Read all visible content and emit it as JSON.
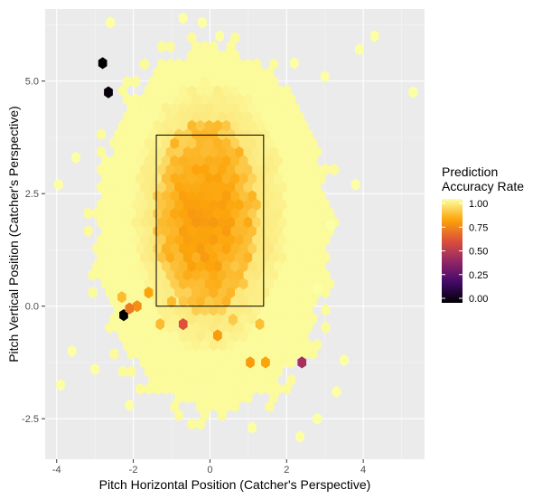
{
  "chart_data": {
    "type": "heatmap",
    "subtype": "hexbin",
    "title": "",
    "xlabel": "Pitch Horizontal Position (Catcher's Perspective)",
    "ylabel": "Pitch Vertical Position (Catcher's Perspective)",
    "xlim": [
      -4.3,
      5.6
    ],
    "ylim": [
      -3.4,
      6.6
    ],
    "x_ticks": [
      -4,
      -2,
      0,
      2,
      4
    ],
    "x_tick_labels": [
      "-4",
      "-2",
      "0",
      "2",
      "4"
    ],
    "y_ticks": [
      -2.5,
      0,
      2.5,
      5
    ],
    "y_tick_labels": [
      "-2.5",
      "0.0",
      "2.5",
      "5.0"
    ],
    "grid": true,
    "panel_background": "#ebebeb",
    "strike_zone": {
      "x": [
        -1.4,
        1.4
      ],
      "y": [
        0,
        3.8
      ]
    },
    "legend": {
      "title_lines": [
        "Prediction",
        "Accuracy Rate"
      ],
      "placement": "right",
      "range": [
        0,
        1
      ],
      "ticks": [
        0,
        0.25,
        0.5,
        0.75,
        1
      ],
      "tick_labels": [
        "0.00",
        "0.25",
        "0.50",
        "0.75",
        "1.00"
      ],
      "colormap": "inferno",
      "color_stops": [
        "#000004",
        "#420a68",
        "#932667",
        "#dd513a",
        "#fca50a",
        "#fcffa4"
      ]
    },
    "hex_size": 0.13,
    "regions": {
      "outer": {
        "cx": 0.1,
        "cy": 1.7,
        "rx": 3.0,
        "ry": 4.0,
        "value": 0.99
      },
      "middle": {
        "cx": 0.0,
        "cy": 2.0,
        "rx": 2.0,
        "ry": 3.0,
        "value": 0.92
      },
      "core": {
        "cx": -0.1,
        "cy": 2.0,
        "rx": 1.35,
        "ry": 2.2,
        "value": 0.8
      }
    },
    "outlier_points": [
      {
        "x": -2.8,
        "y": 5.4,
        "value": 0.0
      },
      {
        "x": -2.65,
        "y": 4.75,
        "value": 0.02
      },
      {
        "x": -2.25,
        "y": -0.2,
        "value": 0.0
      },
      {
        "x": -1.9,
        "y": 0.0,
        "value": 0.75
      },
      {
        "x": -2.1,
        "y": -0.05,
        "value": 0.7
      },
      {
        "x": -2.3,
        "y": 0.2,
        "value": 0.85
      },
      {
        "x": -0.7,
        "y": -0.4,
        "value": 0.6
      },
      {
        "x": 0.2,
        "y": -0.65,
        "value": 0.78
      },
      {
        "x": 1.05,
        "y": -1.25,
        "value": 0.78
      },
      {
        "x": 1.45,
        "y": -1.25,
        "value": 0.8
      },
      {
        "x": 2.4,
        "y": -1.25,
        "value": 0.45
      },
      {
        "x": -1.3,
        "y": -0.4,
        "value": 0.85
      },
      {
        "x": -1.6,
        "y": 0.3,
        "value": 0.8
      },
      {
        "x": 5.3,
        "y": 4.75,
        "value": 1.0
      },
      {
        "x": 4.3,
        "y": 6.0,
        "value": 1.0
      },
      {
        "x": 3.9,
        "y": 5.7,
        "value": 1.0
      },
      {
        "x": 3.8,
        "y": 2.7,
        "value": 1.0
      },
      {
        "x": -3.9,
        "y": -1.75,
        "value": 1.0
      },
      {
        "x": -3.6,
        "y": -1.0,
        "value": 1.0
      },
      {
        "x": -3.0,
        "y": -1.4,
        "value": 1.0
      },
      {
        "x": -2.1,
        "y": -2.2,
        "value": 1.0
      },
      {
        "x": 1.1,
        "y": -2.7,
        "value": 1.0
      },
      {
        "x": 2.35,
        "y": -2.9,
        "value": 1.0
      },
      {
        "x": 2.8,
        "y": -2.5,
        "value": 1.0
      },
      {
        "x": 3.3,
        "y": -1.9,
        "value": 1.0
      },
      {
        "x": 3.5,
        "y": -1.2,
        "value": 1.0
      },
      {
        "x": -2.6,
        "y": 6.3,
        "value": 1.0
      },
      {
        "x": -0.7,
        "y": 6.4,
        "value": 1.0
      },
      {
        "x": -0.2,
        "y": 6.3,
        "value": 1.0
      },
      {
        "x": 0.25,
        "y": 6.0,
        "value": 1.0
      },
      {
        "x": 2.2,
        "y": 5.4,
        "value": 1.0
      },
      {
        "x": 3.0,
        "y": 5.1,
        "value": 1.0
      },
      {
        "x": -3.5,
        "y": 3.3,
        "value": 1.0
      },
      {
        "x": -3.95,
        "y": 2.7,
        "value": 1.0
      },
      {
        "x": 3.15,
        "y": 1.8,
        "value": 1.0
      },
      {
        "x": 2.8,
        "y": 0.4,
        "value": 1.0
      },
      {
        "x": -1.0,
        "y": 0.1,
        "value": 0.85
      },
      {
        "x": 0.6,
        "y": -0.3,
        "value": 0.88
      },
      {
        "x": 1.3,
        "y": -0.4,
        "value": 0.86
      }
    ]
  }
}
